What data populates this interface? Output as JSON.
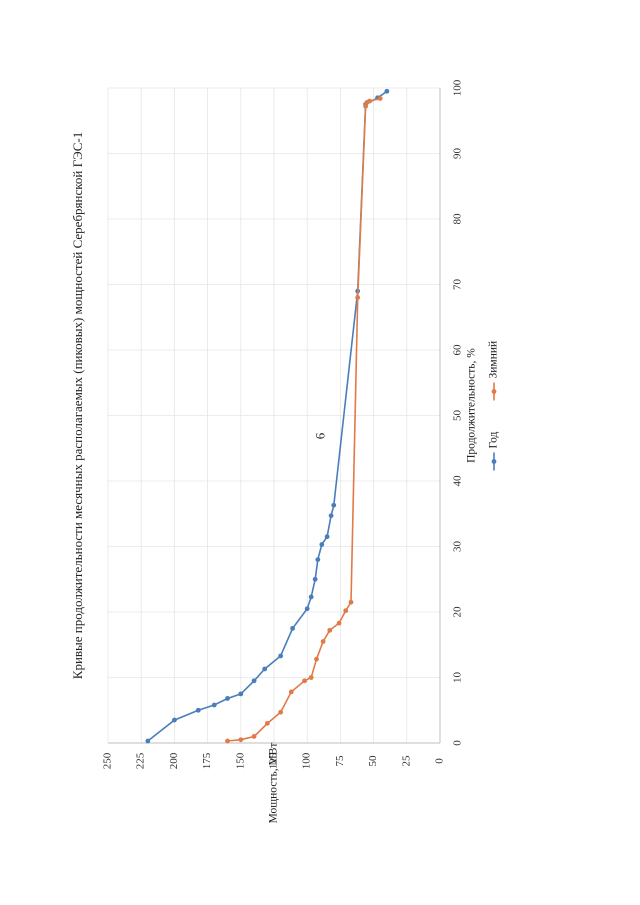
{
  "page": {
    "number": "6"
  },
  "chart_data": {
    "type": "line",
    "title": "Кривые продолжительности месячных располагаемых (пиковых) мощностей Серебрянской ГЭС-1",
    "xlabel": "Продолжительность, %",
    "ylabel": "Мощность, МВт",
    "xlim": [
      0,
      100
    ],
    "ylim": [
      0,
      250
    ],
    "x_ticks": [
      "0",
      "10",
      "20",
      "30",
      "40",
      "50",
      "60",
      "70",
      "80",
      "90",
      "100"
    ],
    "y_ticks": [
      "0",
      "25",
      "50",
      "75",
      "100",
      "125",
      "150",
      "175",
      "200",
      "225",
      "250"
    ],
    "grid": true,
    "legend_position": "bottom",
    "colors": {
      "Год": "#4a7ebb",
      "Зимний": "#e07a47"
    },
    "series": [
      {
        "name": "Год",
        "color": "#4a7ebb",
        "points": [
          [
            0.3,
            220
          ],
          [
            3.5,
            200
          ],
          [
            5.0,
            182
          ],
          [
            5.8,
            170
          ],
          [
            6.8,
            160
          ],
          [
            7.5,
            150
          ],
          [
            9.5,
            140
          ],
          [
            11.3,
            132
          ],
          [
            13.3,
            120
          ],
          [
            17.5,
            111
          ],
          [
            20.5,
            100
          ],
          [
            22.3,
            97
          ],
          [
            25.0,
            94
          ],
          [
            28.0,
            92
          ],
          [
            30.3,
            89
          ],
          [
            31.5,
            85
          ],
          [
            34.7,
            82
          ],
          [
            36.3,
            80
          ],
          [
            69.0,
            62
          ],
          [
            97.5,
            56
          ],
          [
            98.5,
            47
          ],
          [
            99.5,
            40
          ]
        ]
      },
      {
        "name": "Зимний",
        "color": "#e07a47",
        "points": [
          [
            0.3,
            160
          ],
          [
            0.5,
            150
          ],
          [
            1.0,
            140
          ],
          [
            3.0,
            130
          ],
          [
            4.7,
            120
          ],
          [
            7.8,
            112
          ],
          [
            9.5,
            102
          ],
          [
            10.0,
            97
          ],
          [
            12.8,
            93
          ],
          [
            15.5,
            88
          ],
          [
            17.2,
            83
          ],
          [
            18.3,
            76
          ],
          [
            20.2,
            71
          ],
          [
            21.5,
            67
          ],
          [
            68.0,
            62
          ],
          [
            97.2,
            56
          ],
          [
            97.8,
            55
          ],
          [
            98.0,
            53
          ],
          [
            98.4,
            45
          ]
        ]
      }
    ]
  }
}
